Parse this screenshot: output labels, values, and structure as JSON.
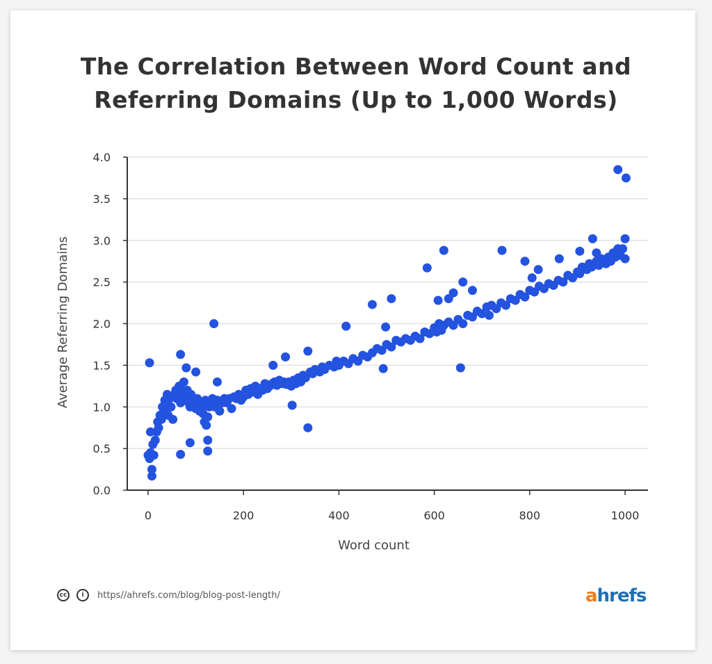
{
  "chart_data": {
    "type": "scatter",
    "title": "The Correlation Between Word Count and Referring Domains (Up to 1,000 Words)",
    "title_lines": [
      "The Correlation Between Word Count and",
      "Referring Domains (Up to 1,000 Words)"
    ],
    "xlabel": "Word count",
    "ylabel": "Average Referring Domains",
    "xlim": [
      -40,
      1045
    ],
    "ylim": [
      0,
      4.0
    ],
    "xticks": [
      0,
      200,
      400,
      600,
      800,
      1000
    ],
    "xtick_labels": [
      "0",
      "200",
      "400",
      "600",
      "800",
      "1000"
    ],
    "yticks": [
      0,
      0.5,
      1.0,
      1.5,
      2.0,
      2.5,
      3.0,
      3.5,
      4.0
    ],
    "ytick_labels": [
      "0.0",
      "0.5",
      "1.0",
      "1.5",
      "2.0",
      "2.5",
      "3.0",
      "3.5",
      "4.0"
    ],
    "grid": "horizontal",
    "point_color": "#2453e0",
    "points": [
      [
        0,
        0.42
      ],
      [
        3,
        0.38
      ],
      [
        5,
        0.45
      ],
      [
        8,
        0.25
      ],
      [
        8,
        0.17
      ],
      [
        10,
        0.55
      ],
      [
        12,
        0.42
      ],
      [
        15,
        0.6
      ],
      [
        18,
        0.7
      ],
      [
        20,
        0.82
      ],
      [
        22,
        0.75
      ],
      [
        25,
        0.9
      ],
      [
        28,
        0.85
      ],
      [
        30,
        1.0
      ],
      [
        33,
        0.95
      ],
      [
        35,
        1.08
      ],
      [
        38,
        1.05
      ],
      [
        40,
        1.15
      ],
      [
        42,
        0.9
      ],
      [
        45,
        1.1
      ],
      [
        48,
        1.0
      ],
      [
        50,
        1.12
      ],
      [
        52,
        0.85
      ],
      [
        55,
        1.15
      ],
      [
        58,
        1.2
      ],
      [
        60,
        1.1
      ],
      [
        62,
        1.18
      ],
      [
        65,
        1.25
      ],
      [
        68,
        1.05
      ],
      [
        70,
        1.2
      ],
      [
        72,
        1.15
      ],
      [
        75,
        1.3
      ],
      [
        78,
        1.1
      ],
      [
        80,
        1.08
      ],
      [
        82,
        1.2
      ],
      [
        85,
        1.05
      ],
      [
        88,
        1.0
      ],
      [
        90,
        1.15
      ],
      [
        92,
        1.1
      ],
      [
        95,
        1.0
      ],
      [
        98,
        1.05
      ],
      [
        100,
        0.98
      ],
      [
        103,
        1.1
      ],
      [
        105,
        1.02
      ],
      [
        108,
        0.95
      ],
      [
        110,
        1.05
      ],
      [
        113,
        1.0
      ],
      [
        115,
        0.92
      ],
      [
        118,
        0.82
      ],
      [
        120,
        1.08
      ],
      [
        122,
        0.78
      ],
      [
        125,
        0.88
      ],
      [
        128,
        1.0
      ],
      [
        130,
        1.05
      ],
      [
        135,
        1.1
      ],
      [
        140,
        1.0
      ],
      [
        145,
        1.08
      ],
      [
        150,
        0.95
      ],
      [
        155,
        1.05
      ],
      [
        160,
        1.1
      ],
      [
        165,
        1.05
      ],
      [
        170,
        1.1
      ],
      [
        175,
        0.98
      ],
      [
        180,
        1.12
      ],
      [
        185,
        1.1
      ],
      [
        190,
        1.15
      ],
      [
        195,
        1.08
      ],
      [
        200,
        1.12
      ],
      [
        205,
        1.2
      ],
      [
        210,
        1.15
      ],
      [
        215,
        1.22
      ],
      [
        220,
        1.18
      ],
      [
        225,
        1.25
      ],
      [
        230,
        1.15
      ],
      [
        235,
        1.22
      ],
      [
        240,
        1.2
      ],
      [
        245,
        1.28
      ],
      [
        250,
        1.22
      ],
      [
        255,
        1.25
      ],
      [
        260,
        1.28
      ],
      [
        265,
        1.3
      ],
      [
        270,
        1.26
      ],
      [
        275,
        1.32
      ],
      [
        280,
        1.28
      ],
      [
        285,
        1.3
      ],
      [
        290,
        1.27
      ],
      [
        295,
        1.3
      ],
      [
        300,
        1.25
      ],
      [
        305,
        1.32
      ],
      [
        310,
        1.28
      ],
      [
        315,
        1.35
      ],
      [
        320,
        1.3
      ],
      [
        325,
        1.38
      ],
      [
        330,
        1.35
      ],
      [
        340,
        1.42
      ],
      [
        345,
        1.4
      ],
      [
        350,
        1.45
      ],
      [
        360,
        1.42
      ],
      [
        365,
        1.48
      ],
      [
        370,
        1.45
      ],
      [
        380,
        1.5
      ],
      [
        390,
        1.48
      ],
      [
        395,
        1.55
      ],
      [
        400,
        1.5
      ],
      [
        410,
        1.55
      ],
      [
        420,
        1.52
      ],
      [
        430,
        1.58
      ],
      [
        440,
        1.55
      ],
      [
        450,
        1.62
      ],
      [
        460,
        1.6
      ],
      [
        470,
        1.65
      ],
      [
        480,
        1.7
      ],
      [
        490,
        1.68
      ],
      [
        500,
        1.75
      ],
      [
        510,
        1.72
      ],
      [
        520,
        1.8
      ],
      [
        530,
        1.78
      ],
      [
        540,
        1.82
      ],
      [
        550,
        1.8
      ],
      [
        560,
        1.85
      ],
      [
        570,
        1.82
      ],
      [
        580,
        1.9
      ],
      [
        590,
        1.88
      ],
      [
        600,
        1.95
      ],
      [
        605,
        1.9
      ],
      [
        610,
        2.0
      ],
      [
        615,
        1.92
      ],
      [
        620,
        1.98
      ],
      [
        630,
        2.02
      ],
      [
        640,
        1.98
      ],
      [
        650,
        2.05
      ],
      [
        660,
        2.0
      ],
      [
        670,
        2.1
      ],
      [
        680,
        2.08
      ],
      [
        690,
        2.15
      ],
      [
        700,
        2.12
      ],
      [
        710,
        2.2
      ],
      [
        715,
        2.1
      ],
      [
        720,
        2.22
      ],
      [
        730,
        2.18
      ],
      [
        740,
        2.25
      ],
      [
        750,
        2.22
      ],
      [
        760,
        2.3
      ],
      [
        770,
        2.28
      ],
      [
        780,
        2.35
      ],
      [
        790,
        2.32
      ],
      [
        800,
        2.4
      ],
      [
        810,
        2.38
      ],
      [
        820,
        2.45
      ],
      [
        830,
        2.42
      ],
      [
        840,
        2.48
      ],
      [
        850,
        2.46
      ],
      [
        860,
        2.52
      ],
      [
        870,
        2.5
      ],
      [
        880,
        2.58
      ],
      [
        890,
        2.55
      ],
      [
        900,
        2.62
      ],
      [
        905,
        2.6
      ],
      [
        910,
        2.68
      ],
      [
        920,
        2.65
      ],
      [
        925,
        2.72
      ],
      [
        930,
        2.68
      ],
      [
        940,
        2.75
      ],
      [
        945,
        2.7
      ],
      [
        950,
        2.78
      ],
      [
        960,
        2.72
      ],
      [
        965,
        2.8
      ],
      [
        970,
        2.75
      ],
      [
        975,
        2.85
      ],
      [
        980,
        2.8
      ],
      [
        985,
        2.9
      ],
      [
        990,
        2.82
      ],
      [
        995,
        2.9
      ],
      [
        1000,
        2.78
      ],
      [
        3,
        1.53
      ],
      [
        5,
        0.7
      ],
      [
        68,
        1.63
      ],
      [
        68,
        0.43
      ],
      [
        80,
        1.47
      ],
      [
        88,
        0.57
      ],
      [
        100,
        1.42
      ],
      [
        125,
        0.6
      ],
      [
        125,
        0.47
      ],
      [
        138,
        2.0
      ],
      [
        145,
        1.3
      ],
      [
        262,
        1.5
      ],
      [
        288,
        1.6
      ],
      [
        302,
        1.02
      ],
      [
        335,
        0.75
      ],
      [
        335,
        1.67
      ],
      [
        415,
        1.97
      ],
      [
        470,
        2.23
      ],
      [
        493,
        1.46
      ],
      [
        498,
        1.96
      ],
      [
        510,
        2.3
      ],
      [
        585,
        2.67
      ],
      [
        608,
        2.28
      ],
      [
        620,
        2.88
      ],
      [
        630,
        2.3
      ],
      [
        640,
        2.37
      ],
      [
        655,
        1.47
      ],
      [
        660,
        2.5
      ],
      [
        680,
        2.4
      ],
      [
        742,
        2.88
      ],
      [
        790,
        2.75
      ],
      [
        805,
        2.55
      ],
      [
        818,
        2.65
      ],
      [
        862,
        2.78
      ],
      [
        905,
        2.87
      ],
      [
        932,
        3.02
      ],
      [
        985,
        3.85
      ],
      [
        1002,
        3.75
      ],
      [
        1000,
        3.02
      ],
      [
        940,
        2.85
      ]
    ]
  },
  "footer": {
    "license_icons": [
      "creative-commons-icon",
      "attribution-icon"
    ],
    "cc_glyph": "cc",
    "by_glyph": "i",
    "url": "https//ahrefs.com/blog/blog-post-length/",
    "logo_a": "a",
    "logo_rest": "hrefs",
    "logo_colors": {
      "a": "#f07c1b",
      "rest": "#1f6fb3"
    }
  }
}
